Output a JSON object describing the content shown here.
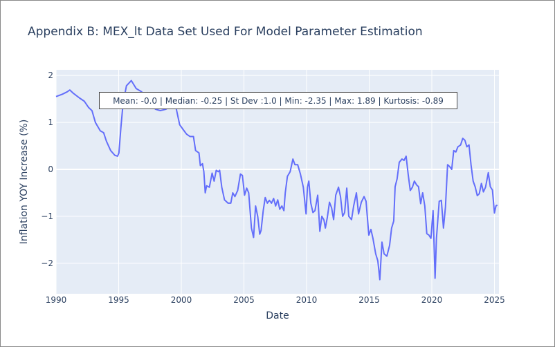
{
  "chart_data": {
    "type": "line",
    "title": "Appendix B: MEX_lt Data Set Used For Model Parameter Estimation",
    "x_label": "Date",
    "y_label": "Inflation YOY Increase (%)",
    "annotation": "Mean: -0.0 | Median: -0.25 | St Dev :1.0 | Min: -2.35 | Max: 1.89 | Kurtosis: -0.89",
    "xlim": [
      1990,
      2025.36
    ],
    "ylim": [
      -2.65,
      2.12
    ],
    "xticks": [
      1990,
      1995,
      2000,
      2005,
      2010,
      2015,
      2020,
      2025
    ],
    "yticks": [
      {
        "value": -2,
        "label": "−2"
      },
      {
        "value": -1,
        "label": "−1"
      },
      0,
      1,
      2
    ],
    "grid": true,
    "x": [
      1990.0,
      1990.5,
      1990.88,
      1991.1,
      1991.38,
      1991.87,
      1992.26,
      1992.59,
      1992.87,
      1993.14,
      1993.53,
      1993.8,
      1994.02,
      1994.36,
      1994.69,
      1994.91,
      1995.02,
      1995.18,
      1995.35,
      1995.62,
      1996.01,
      1996.17,
      1996.4,
      1996.84,
      1997.11,
      1997.5,
      1997.94,
      1998.32,
      1998.77,
      1999.32,
      1999.59,
      1999.87,
      2000.14,
      2000.42,
      2000.69,
      2000.97,
      2001.14,
      2001.41,
      2001.52,
      2001.69,
      2001.8,
      2001.91,
      2002.02,
      2002.24,
      2002.46,
      2002.62,
      2002.79,
      2002.95,
      2003.06,
      2003.23,
      2003.45,
      2003.73,
      2003.95,
      2004.11,
      2004.28,
      2004.5,
      2004.72,
      2004.88,
      2005.05,
      2005.22,
      2005.38,
      2005.6,
      2005.77,
      2005.93,
      2006.1,
      2006.26,
      2006.37,
      2006.54,
      2006.7,
      2006.87,
      2007.03,
      2007.2,
      2007.37,
      2007.53,
      2007.7,
      2007.86,
      2008.03,
      2008.19,
      2008.3,
      2008.47,
      2008.69,
      2008.91,
      2009.07,
      2009.29,
      2009.51,
      2009.74,
      2009.96,
      2010.07,
      2010.18,
      2010.34,
      2010.51,
      2010.67,
      2010.89,
      2011.06,
      2011.22,
      2011.39,
      2011.5,
      2011.66,
      2011.83,
      2012.0,
      2012.16,
      2012.33,
      2012.55,
      2012.71,
      2012.88,
      2013.04,
      2013.21,
      2013.37,
      2013.59,
      2013.76,
      2013.98,
      2014.15,
      2014.37,
      2014.59,
      2014.75,
      2014.97,
      2015.14,
      2015.3,
      2015.52,
      2015.69,
      2015.85,
      2016.02,
      2016.19,
      2016.41,
      2016.63,
      2016.79,
      2016.96,
      2017.07,
      2017.23,
      2017.4,
      2017.62,
      2017.78,
      2017.95,
      2018.11,
      2018.28,
      2018.45,
      2018.61,
      2018.78,
      2018.94,
      2019.11,
      2019.27,
      2019.44,
      2019.6,
      2019.77,
      2019.93,
      2020.1,
      2020.26,
      2020.37,
      2020.59,
      2020.76,
      2020.93,
      2021.09,
      2021.26,
      2021.42,
      2021.59,
      2021.75,
      2021.92,
      2022.08,
      2022.3,
      2022.47,
      2022.64,
      2022.8,
      2022.97,
      2023.13,
      2023.3,
      2023.46,
      2023.63,
      2023.79,
      2023.96,
      2024.12,
      2024.29,
      2024.51,
      2024.67,
      2024.84,
      2025.0,
      2025.12,
      2025.23
    ],
    "series": [
      {
        "name": "MEX_lt",
        "color": "#636efa",
        "values": [
          1.55,
          1.6,
          1.65,
          1.69,
          1.62,
          1.52,
          1.45,
          1.32,
          1.25,
          1.0,
          0.82,
          0.78,
          0.6,
          0.4,
          0.3,
          0.28,
          0.35,
          0.9,
          1.4,
          1.78,
          1.89,
          1.82,
          1.72,
          1.65,
          1.55,
          1.4,
          1.28,
          1.25,
          1.28,
          1.38,
          1.3,
          0.95,
          0.85,
          0.75,
          0.7,
          0.7,
          0.4,
          0.35,
          0.08,
          0.12,
          -0.05,
          -0.5,
          -0.35,
          -0.38,
          -0.08,
          -0.25,
          -0.02,
          -0.05,
          -0.02,
          -0.38,
          -0.65,
          -0.72,
          -0.72,
          -0.5,
          -0.58,
          -0.45,
          -0.1,
          -0.13,
          -0.55,
          -0.4,
          -0.5,
          -1.25,
          -1.45,
          -0.78,
          -1.0,
          -1.38,
          -1.3,
          -0.88,
          -0.6,
          -0.72,
          -0.66,
          -0.72,
          -0.62,
          -0.78,
          -0.65,
          -0.85,
          -0.78,
          -0.88,
          -0.5,
          -0.15,
          -0.05,
          0.22,
          0.1,
          0.1,
          -0.1,
          -0.38,
          -0.95,
          -0.38,
          -0.25,
          -0.72,
          -0.92,
          -0.88,
          -0.55,
          -1.32,
          -1.0,
          -1.08,
          -1.25,
          -1.02,
          -0.7,
          -0.82,
          -1.07,
          -0.55,
          -0.38,
          -0.58,
          -1.0,
          -0.92,
          -0.4,
          -1.0,
          -1.07,
          -0.78,
          -0.5,
          -0.95,
          -0.7,
          -0.58,
          -0.68,
          -1.4,
          -1.28,
          -1.47,
          -1.8,
          -1.95,
          -2.35,
          -1.55,
          -1.8,
          -1.85,
          -1.62,
          -1.25,
          -1.1,
          -0.37,
          -0.2,
          0.15,
          0.22,
          0.19,
          0.28,
          -0.1,
          -0.45,
          -0.38,
          -0.25,
          -0.33,
          -0.37,
          -0.73,
          -0.5,
          -0.78,
          -1.37,
          -1.4,
          -1.47,
          -0.88,
          -2.32,
          -1.47,
          -0.68,
          -0.66,
          -1.25,
          -0.8,
          0.1,
          0.06,
          0.0,
          0.4,
          0.37,
          0.48,
          0.52,
          0.66,
          0.62,
          0.48,
          0.52,
          0.1,
          -0.25,
          -0.37,
          -0.56,
          -0.52,
          -0.3,
          -0.48,
          -0.38,
          -0.07,
          -0.37,
          -0.44,
          -0.93,
          -0.78,
          -0.76
        ]
      }
    ]
  }
}
